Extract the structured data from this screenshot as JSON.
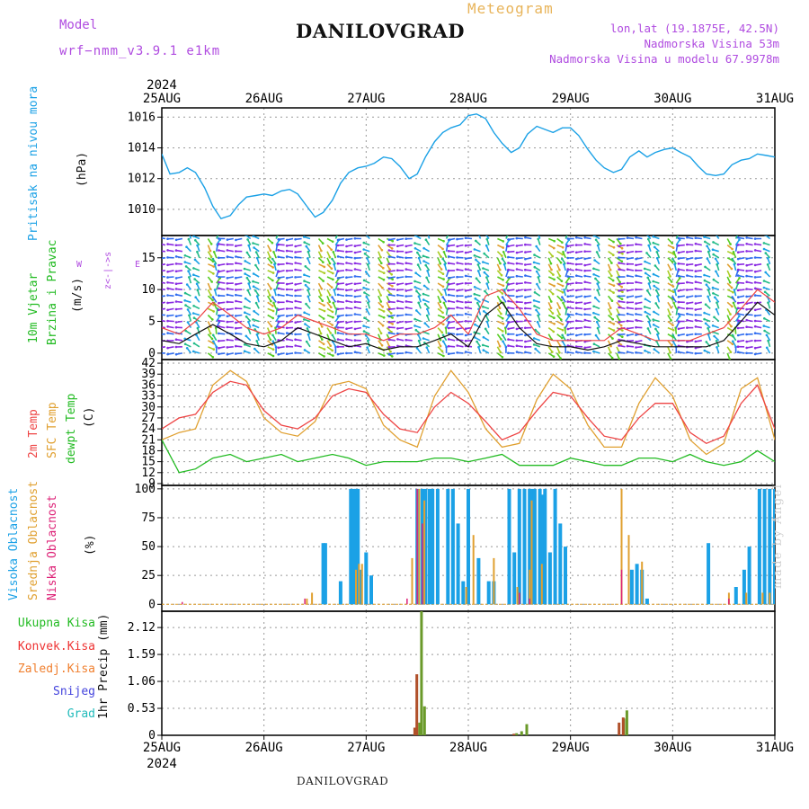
{
  "header": {
    "title": "DANILOVGRAD",
    "meteogram": "Meteogram",
    "model_label": "Model",
    "model_value": "wrf−nmm_v3.9.1  e1km",
    "lonlat": "lon,lat (19.1875E, 42.5N)",
    "elevation": "Nadmorska Visina 53m",
    "model_elevation": "Nadmorska Visina u modelu 67.9978m",
    "footer": "DANILOVGRAD",
    "watermark": "made by Angel"
  },
  "colors": {
    "pressure": "#1ba1e6",
    "wind_label": "#22bb22",
    "t2m": "#ee4444",
    "sfc": "#e0a030",
    "dewpt": "#22bb22",
    "high_cloud": "#1ba1e6",
    "mid_cloud": "#e0a030",
    "low_cloud": "#dd2277",
    "total_rain": "#22bb22",
    "conv_rain": "#ee3333",
    "frz_rain": "#f08030",
    "snow": "#4444dd",
    "hail": "#22bbbb",
    "wind_dir": "#b04ce0"
  },
  "time_axis": {
    "year": "2024",
    "labels": [
      "25AUG",
      "26AUG",
      "27AUG",
      "28AUG",
      "29AUG",
      "30AUG",
      "31AUG"
    ]
  },
  "panels": {
    "pressure": {
      "label": "Pritisak na nivou mora",
      "unit": "(hPa)"
    },
    "wind": {
      "label1": "10m Vjetar",
      "label2": "Brzina i Pravac",
      "unit": "(m/s)",
      "compass_ns": "z<-|->s",
      "compass_w": "W",
      "compass_e": "E"
    },
    "temp": {
      "label1": "2m Temp",
      "label2": "SFC Temp",
      "label3": "dewpt Temp",
      "unit": "(C)"
    },
    "cloud": {
      "label1": "Visoka Oblacnost",
      "label2": "Srednja Oblacnost",
      "label3": "Niska Oblacnost",
      "unit": "(%)"
    },
    "precip": {
      "unit": "1hr Precip (mm)",
      "legend": [
        "Ukupna Kisa",
        "Konvek.Kisa",
        "Zaledj.Kisa",
        "Snijeg",
        "Grad"
      ]
    }
  },
  "chart_data": [
    {
      "type": "line",
      "title": "Pritisak na nivou mora",
      "ylabel": "(hPa)",
      "xlim": [
        0,
        6
      ],
      "ylim": [
        1008.3,
        1016.6
      ],
      "yticks": [
        1010,
        1012,
        1014,
        1016
      ],
      "x": [
        0,
        0.08,
        0.17,
        0.25,
        0.33,
        0.42,
        0.5,
        0.58,
        0.67,
        0.75,
        0.83,
        0.92,
        1.0,
        1.08,
        1.17,
        1.25,
        1.33,
        1.42,
        1.5,
        1.58,
        1.67,
        1.75,
        1.83,
        1.92,
        2.0,
        2.08,
        2.17,
        2.25,
        2.33,
        2.42,
        2.5,
        2.58,
        2.67,
        2.75,
        2.83,
        2.92,
        3.0,
        3.08,
        3.17,
        3.25,
        3.33,
        3.42,
        3.5,
        3.58,
        3.67,
        3.75,
        3.83,
        3.92,
        4.0,
        4.08,
        4.17,
        4.25,
        4.33,
        4.42,
        4.5,
        4.58,
        4.67,
        4.75,
        4.83,
        4.92,
        5.0,
        5.08,
        5.17,
        5.25,
        5.33,
        5.42,
        5.5,
        5.58,
        5.67,
        5.75,
        5.83,
        5.92,
        6.0
      ],
      "series": [
        {
          "name": "Pritisak na nivou mora",
          "values": [
            1013.6,
            1012.3,
            1012.4,
            1012.7,
            1012.4,
            1011.4,
            1010.2,
            1009.4,
            1009.6,
            1010.3,
            1010.8,
            1010.9,
            1011.0,
            1010.9,
            1011.2,
            1011.3,
            1011.0,
            1010.2,
            1009.5,
            1009.8,
            1010.6,
            1011.7,
            1012.4,
            1012.7,
            1012.8,
            1013.0,
            1013.4,
            1013.3,
            1012.8,
            1012.0,
            1012.3,
            1013.4,
            1014.4,
            1015.0,
            1015.3,
            1015.5,
            1016.1,
            1016.2,
            1015.9,
            1015.0,
            1014.3,
            1013.7,
            1014.0,
            1014.9,
            1015.4,
            1015.2,
            1015.0,
            1015.3,
            1015.3,
            1014.8,
            1013.9,
            1013.2,
            1012.7,
            1012.4,
            1012.6,
            1013.4,
            1013.8,
            1013.4,
            1013.7,
            1013.9,
            1014.0,
            1013.7,
            1013.4,
            1012.8,
            1012.3,
            1012.2,
            1012.3,
            1012.9,
            1013.2,
            1013.3,
            1013.6,
            1013.5,
            1013.4
          ]
        }
      ]
    },
    {
      "type": "line",
      "title": "10m Vjetar Brzina i Pravac",
      "ylabel": "(m/s)",
      "xlim": [
        0,
        6
      ],
      "ylim": [
        -1,
        18.5
      ],
      "yticks": [
        0,
        5,
        10,
        15
      ],
      "x": [
        0,
        0.17,
        0.33,
        0.5,
        0.67,
        0.83,
        1.0,
        1.17,
        1.33,
        1.5,
        1.67,
        1.83,
        2.0,
        2.17,
        2.33,
        2.5,
        2.67,
        2.83,
        3.0,
        3.17,
        3.33,
        3.5,
        3.67,
        3.83,
        4.0,
        4.17,
        4.33,
        4.5,
        4.67,
        4.83,
        5.0,
        5.17,
        5.33,
        5.5,
        5.67,
        5.83,
        6.0
      ],
      "series": [
        {
          "name": "speed",
          "values": [
            2,
            1.5,
            3,
            4.5,
            3,
            1.5,
            1,
            2,
            4,
            3,
            2,
            1,
            1.5,
            0.5,
            1,
            1,
            2,
            3,
            1,
            6,
            8,
            4,
            1.5,
            1,
            1,
            0.5,
            1,
            2,
            1.5,
            1,
            1,
            1,
            1,
            2,
            5,
            8,
            6
          ]
        },
        {
          "name": "gust",
          "values": [
            4,
            3,
            5,
            8,
            6,
            4,
            3,
            4,
            6,
            5,
            4,
            3,
            3,
            2,
            3,
            3,
            4,
            6,
            3,
            9,
            10,
            7,
            3,
            2,
            2,
            2,
            2,
            4,
            3,
            2,
            2,
            2,
            3,
            4,
            7,
            10,
            8
          ]
        }
      ]
    },
    {
      "type": "line",
      "title": "2m Temp / SFC Temp / dewpt Temp",
      "ylabel": "(C)",
      "xlim": [
        0,
        6
      ],
      "ylim": [
        8.5,
        43
      ],
      "yticks": [
        9,
        12,
        15,
        18,
        21,
        24,
        27,
        30,
        33,
        36,
        39,
        42
      ],
      "x": [
        0,
        0.17,
        0.33,
        0.5,
        0.67,
        0.83,
        1.0,
        1.17,
        1.33,
        1.5,
        1.67,
        1.83,
        2.0,
        2.17,
        2.33,
        2.5,
        2.67,
        2.83,
        3.0,
        3.17,
        3.33,
        3.5,
        3.67,
        3.83,
        4.0,
        4.17,
        4.33,
        4.5,
        4.67,
        4.83,
        5.0,
        5.17,
        5.33,
        5.5,
        5.67,
        5.83,
        6.0
      ],
      "series": [
        {
          "name": "2m Temp",
          "values": [
            24,
            27,
            28,
            34,
            37,
            36,
            29,
            25,
            24,
            27,
            33,
            35,
            34,
            28,
            24,
            23,
            30,
            34,
            31,
            26,
            21,
            23,
            29,
            34,
            33,
            27,
            22,
            21,
            27,
            31,
            31,
            23,
            20,
            22,
            31,
            36,
            24
          ]
        },
        {
          "name": "SFC Temp",
          "values": [
            21,
            23,
            24,
            36,
            40,
            37,
            27,
            23,
            22,
            26,
            36,
            37,
            35,
            25,
            21,
            19,
            33,
            40,
            34,
            24,
            19,
            20,
            32,
            39,
            35,
            25,
            19,
            19,
            31,
            38,
            33,
            21,
            17,
            20,
            35,
            38,
            21
          ]
        },
        {
          "name": "dewpt Temp",
          "values": [
            21,
            12,
            13,
            16,
            17,
            15,
            16,
            17,
            15,
            16,
            17,
            16,
            14,
            15,
            15,
            15,
            16,
            16,
            15,
            16,
            17,
            14,
            14,
            14,
            16,
            15,
            14,
            14,
            16,
            16,
            15,
            17,
            15,
            14,
            15,
            18,
            15
          ]
        }
      ]
    },
    {
      "type": "bar",
      "title": "Visoka / Srednja / Niska Oblacnost",
      "ylabel": "(%)",
      "xlim": [
        0,
        6
      ],
      "ylim": [
        -6,
        103
      ],
      "yticks": [
        0,
        25,
        50,
        75,
        100
      ],
      "series": [
        {
          "name": "Visoka Oblacnost",
          "x": [
            1.58,
            1.6,
            1.75,
            1.85,
            1.88,
            1.9,
            1.92,
            1.94,
            2.0,
            2.05,
            2.5,
            2.55,
            2.58,
            2.62,
            2.65,
            2.7,
            2.8,
            2.85,
            2.9,
            2.95,
            3.0,
            3.1,
            3.2,
            3.25,
            3.4,
            3.45,
            3.5,
            3.55,
            3.6,
            3.62,
            3.65,
            3.7,
            3.72,
            3.75,
            3.8,
            3.85,
            3.9,
            3.95,
            4.6,
            4.65,
            4.7,
            4.75,
            5.35,
            5.62,
            5.7,
            5.75,
            5.85,
            5.9,
            5.95,
            6.0
          ],
          "values": [
            53,
            53,
            20,
            100,
            100,
            100,
            100,
            30,
            45,
            25,
            100,
            100,
            100,
            100,
            100,
            100,
            100,
            100,
            70,
            20,
            100,
            40,
            20,
            20,
            100,
            45,
            100,
            100,
            100,
            100,
            100,
            100,
            95,
            100,
            45,
            100,
            70,
            50,
            30,
            35,
            30,
            5,
            53,
            15,
            30,
            50,
            100,
            100,
            100,
            100
          ]
        },
        {
          "name": "Srednja Oblacnost",
          "x": [
            1.42,
            1.47,
            1.9,
            1.93,
            1.96,
            2.45,
            2.52,
            2.57,
            2.98,
            3.05,
            3.25,
            3.48,
            3.6,
            3.62,
            3.72,
            4.5,
            4.57,
            4.7,
            5.55,
            5.72,
            5.88,
            5.95
          ],
          "values": [
            5,
            10,
            30,
            35,
            35,
            40,
            100,
            90,
            15,
            60,
            40,
            15,
            30,
            90,
            35,
            100,
            60,
            37,
            10,
            10,
            10,
            10
          ]
        },
        {
          "name": "Niska Oblacnost",
          "x": [
            0.2,
            1.4,
            2.4,
            2.5,
            2.55,
            3.5,
            3.6,
            4.5,
            5.55
          ],
          "values": [
            2,
            5,
            5,
            100,
            70,
            10,
            5,
            30,
            5
          ]
        }
      ]
    },
    {
      "type": "bar",
      "title": "1hr Precip",
      "ylabel": "1hr Precip (mm)",
      "xlim": [
        0,
        6
      ],
      "ylim": [
        0,
        2.44
      ],
      "yticks": [
        0,
        0.53,
        1.06,
        1.59,
        2.12
      ],
      "series": [
        {
          "name": "Ukupna Kisa",
          "x": [
            2.5,
            2.52,
            2.55,
            3.45,
            3.5,
            3.55,
            4.5,
            4.53
          ],
          "values": [
            0.25,
            2.46,
            0.57,
            0.04,
            0.08,
            0.22,
            0.33,
            0.49
          ]
        },
        {
          "name": "Konvek.Kisa",
          "x": [
            2.48,
            2.5,
            3.45,
            4.48,
            4.52
          ],
          "values": [
            0.15,
            1.2,
            0.03,
            0.25,
            0.35
          ]
        }
      ]
    }
  ]
}
